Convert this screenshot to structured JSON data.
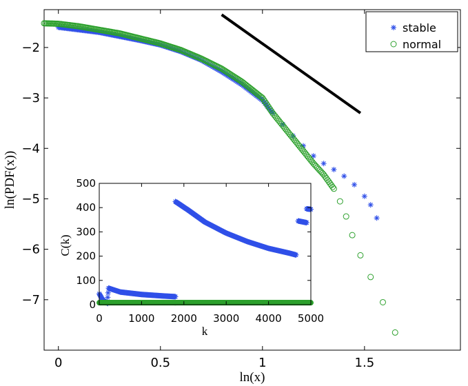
{
  "chart_data": [
    {
      "type": "scatter",
      "title": "",
      "xlabel": "ln(x)",
      "ylabel": "ln(PDF(x))",
      "xlim": [
        -0.07,
        1.97
      ],
      "ylim": [
        -8.0,
        -1.25
      ],
      "xticks": [
        0,
        0.5,
        1,
        1.5
      ],
      "xtick_labels": [
        "0",
        "0.5",
        "1",
        "1.5"
      ],
      "yticks": [
        -2,
        -3,
        -4,
        -5,
        -6,
        -7
      ],
      "ytick_labels": [
        "−2",
        "−3",
        "−4",
        "−5",
        "−6",
        "−7"
      ],
      "legend": {
        "position": "top-right",
        "entries": [
          "stable",
          "normal"
        ]
      },
      "series": [
        {
          "name": "stable",
          "marker": "asterisk",
          "color": "#3050e8",
          "points": [
            [
              0.0,
              -1.6
            ],
            [
              0.1,
              -1.65
            ],
            [
              0.2,
              -1.7
            ],
            [
              0.3,
              -1.78
            ],
            [
              0.4,
              -1.86
            ],
            [
              0.5,
              -1.95
            ],
            [
              0.6,
              -2.08
            ],
            [
              0.7,
              -2.25
            ],
            [
              0.8,
              -2.48
            ],
            [
              0.9,
              -2.74
            ],
            [
              1.0,
              -3.05
            ],
            [
              1.05,
              -3.3
            ],
            [
              1.1,
              -3.52
            ],
            [
              1.15,
              -3.75
            ],
            [
              1.2,
              -3.95
            ],
            [
              1.25,
              -4.15
            ],
            [
              1.3,
              -4.3
            ],
            [
              1.35,
              -4.42
            ],
            [
              1.4,
              -4.55
            ],
            [
              1.45,
              -4.72
            ],
            [
              1.5,
              -4.95
            ],
            [
              1.53,
              -5.12
            ],
            [
              1.56,
              -5.38
            ]
          ]
        },
        {
          "name": "normal",
          "marker": "circle",
          "color": "#2ca02c",
          "points": [
            [
              -0.07,
              -1.52
            ],
            [
              0.0,
              -1.53
            ],
            [
              0.1,
              -1.58
            ],
            [
              0.2,
              -1.65
            ],
            [
              0.3,
              -1.72
            ],
            [
              0.4,
              -1.82
            ],
            [
              0.5,
              -1.92
            ],
            [
              0.6,
              -2.05
            ],
            [
              0.7,
              -2.22
            ],
            [
              0.8,
              -2.42
            ],
            [
              0.9,
              -2.68
            ],
            [
              1.0,
              -3.0
            ],
            [
              1.05,
              -3.3
            ],
            [
              1.1,
              -3.55
            ],
            [
              1.15,
              -3.8
            ],
            [
              1.2,
              -4.05
            ],
            [
              1.25,
              -4.3
            ],
            [
              1.3,
              -4.52
            ],
            [
              1.35,
              -4.8
            ],
            [
              1.38,
              -5.05
            ],
            [
              1.41,
              -5.35
            ],
            [
              1.44,
              -5.72
            ],
            [
              1.48,
              -6.12
            ],
            [
              1.53,
              -6.55
            ],
            [
              1.59,
              -7.05
            ],
            [
              1.65,
              -7.65
            ]
          ]
        },
        {
          "name": "reference slope",
          "marker": "line",
          "color": "#000000",
          "points": [
            [
              0.8,
              -1.35
            ],
            [
              1.48,
              -3.3
            ]
          ]
        }
      ]
    },
    {
      "type": "scatter",
      "title": "",
      "xlabel": "k",
      "ylabel": "C(k)",
      "xlim": [
        0,
        5000
      ],
      "ylim": [
        0,
        500
      ],
      "xticks": [
        0,
        1000,
        2000,
        3000,
        4000,
        5000
      ],
      "xtick_labels": [
        "0",
        "1000",
        "2000",
        "3000",
        "4000",
        "5000"
      ],
      "yticks": [
        0,
        100,
        200,
        300,
        400,
        500
      ],
      "ytick_labels": [
        "0",
        "100",
        "200",
        "300",
        "400",
        "500"
      ],
      "series": [
        {
          "name": "stable",
          "marker": "asterisk",
          "color": "#3050e8",
          "segments": [
            [
              [
                0,
                45
              ],
              [
                80,
                20
              ],
              [
                200,
                5
              ]
            ],
            [
              [
                200,
                30
              ],
              [
                220,
                68
              ],
              [
                500,
                52
              ],
              [
                1000,
                42
              ],
              [
                1500,
                36
              ],
              [
                1800,
                33
              ]
            ],
            [
              [
                1800,
                425
              ],
              [
                2100,
                390
              ],
              [
                2500,
                340
              ],
              [
                3000,
                295
              ],
              [
                3500,
                260
              ],
              [
                4000,
                232
              ],
              [
                4500,
                212
              ],
              [
                4650,
                205
              ]
            ],
            [
              [
                4700,
                345
              ],
              [
                4900,
                338
              ]
            ],
            [
              [
                4900,
                395
              ],
              [
                5000,
                393
              ]
            ]
          ]
        },
        {
          "name": "normal",
          "marker": "circle",
          "color": "#2ca02c",
          "segments": [
            [
              [
                0,
                8
              ],
              [
                5000,
                8
              ]
            ]
          ]
        }
      ]
    }
  ]
}
